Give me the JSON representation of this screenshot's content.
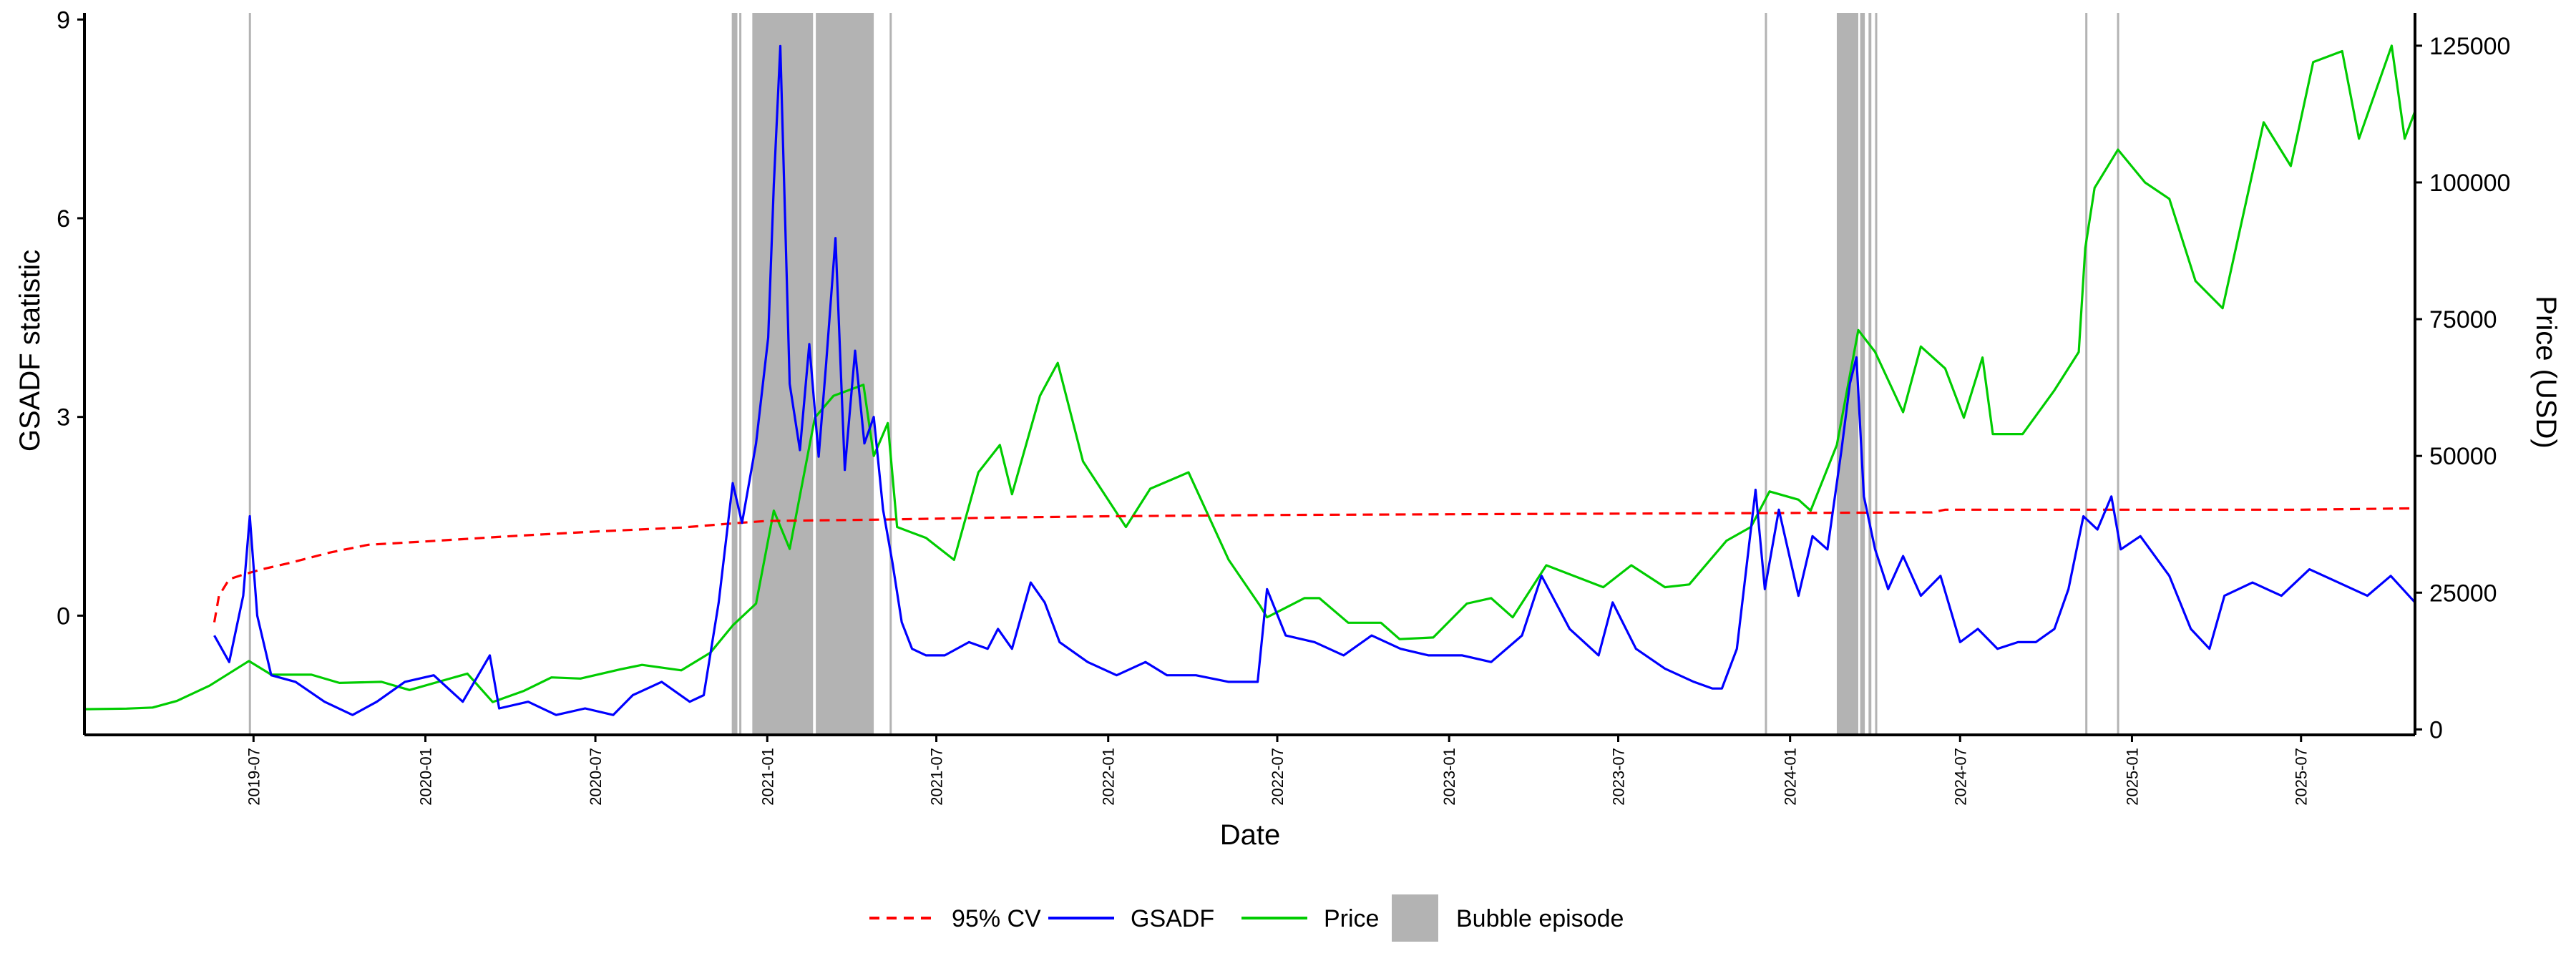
{
  "chart_data": {
    "type": "line",
    "title": "",
    "xlabel": "Date",
    "ylabel_left": "GSADF statistic",
    "ylabel_right": "Price (USD)",
    "xlim": [
      "2019-01-01",
      "2025-10-31"
    ],
    "ylim_left": [
      -1.8,
      9.1
    ],
    "ylim_right": [
      -1000,
      131000
    ],
    "grid": false,
    "legend_position": "bottom",
    "x_tick_labels": [
      "2019-07",
      "2020-01",
      "2020-07",
      "2021-01",
      "2021-07",
      "2022-01",
      "2022-07",
      "2023-01",
      "2023-07",
      "2024-01",
      "2024-07",
      "2025-01",
      "2025-07"
    ],
    "y_left_ticks": [
      0,
      3,
      6,
      9
    ],
    "y_right_ticks": [
      0,
      25000,
      50000,
      75000,
      100000,
      125000
    ],
    "legend": [
      {
        "label": "95% CV",
        "kind": "dashed",
        "color": "#ff0000"
      },
      {
        "label": "GSADF",
        "kind": "line",
        "color": "#0000ff"
      },
      {
        "label": "Price",
        "kind": "line",
        "color": "#00cc00"
      },
      {
        "label": "Bubble episode",
        "kind": "box",
        "color": "#b3b3b3"
      }
    ],
    "bubble_episodes": [
      [
        "2019-06-26",
        "2019-06-28"
      ],
      [
        "2020-11-24",
        "2020-11-30"
      ],
      [
        "2020-12-02",
        "2020-12-04"
      ],
      [
        "2020-12-16",
        "2021-02-19"
      ],
      [
        "2021-02-22",
        "2021-04-25"
      ],
      [
        "2021-05-12",
        "2021-05-13"
      ],
      [
        "2023-12-05",
        "2023-12-06"
      ],
      [
        "2024-02-20",
        "2024-03-14"
      ],
      [
        "2024-03-16",
        "2024-03-21"
      ],
      [
        "2024-03-25",
        "2024-03-28"
      ],
      [
        "2024-04-01",
        "2024-04-03"
      ],
      [
        "2024-11-12",
        "2024-11-13"
      ],
      [
        "2024-12-16",
        "2024-12-17"
      ]
    ],
    "series": [
      {
        "name": "95% CV",
        "axis": "left",
        "color": "#ff0000",
        "style": "dashed",
        "dates": [
          "2019-05-20",
          "2019-05-25",
          "2019-06-05",
          "2019-06-20",
          "2019-07-10",
          "2019-08-10",
          "2019-09-20",
          "2019-11-01",
          "2020-01-01",
          "2020-04-01",
          "2020-07-01",
          "2020-10-01",
          "2020-12-01",
          "2021-01-01",
          "2021-05-01",
          "2021-09-01",
          "2022-01-01",
          "2022-07-01",
          "2023-01-01",
          "2023-07-01",
          "2024-01-01",
          "2024-06-01",
          "2024-06-15",
          "2025-01-01",
          "2025-07-01",
          "2025-10-31"
        ],
        "values": [
          -0.1,
          0.3,
          0.55,
          0.62,
          0.7,
          0.8,
          0.95,
          1.07,
          1.12,
          1.2,
          1.27,
          1.33,
          1.4,
          1.43,
          1.45,
          1.48,
          1.5,
          1.52,
          1.53,
          1.54,
          1.55,
          1.56,
          1.6,
          1.6,
          1.6,
          1.62
        ]
      },
      {
        "name": "GSADF",
        "axis": "left",
        "color": "#0000ff",
        "style": "solid",
        "dates": [
          "2019-05-20",
          "2019-06-05",
          "2019-06-20",
          "2019-06-27",
          "2019-07-05",
          "2019-07-20",
          "2019-08-15",
          "2019-09-15",
          "2019-10-15",
          "2019-11-10",
          "2019-12-10",
          "2020-01-10",
          "2020-02-10",
          "2020-03-10",
          "2020-03-20",
          "2020-04-20",
          "2020-05-20",
          "2020-06-20",
          "2020-07-20",
          "2020-08-10",
          "2020-09-10",
          "2020-10-10",
          "2020-10-25",
          "2020-11-10",
          "2020-11-25",
          "2020-12-05",
          "2020-12-20",
          "2021-01-02",
          "2021-01-08",
          "2021-01-15",
          "2021-01-25",
          "2021-02-05",
          "2021-02-15",
          "2021-02-25",
          "2021-03-05",
          "2021-03-15",
          "2021-03-25",
          "2021-04-05",
          "2021-04-15",
          "2021-04-25",
          "2021-05-05",
          "2021-05-15",
          "2021-05-25",
          "2021-06-05",
          "2021-06-20",
          "2021-07-10",
          "2021-08-05",
          "2021-08-25",
          "2021-09-05",
          "2021-09-20",
          "2021-10-10",
          "2021-10-25",
          "2021-11-10",
          "2021-12-10",
          "2022-01-10",
          "2022-02-10",
          "2022-03-05",
          "2022-04-05",
          "2022-05-10",
          "2022-06-10",
          "2022-06-20",
          "2022-07-10",
          "2022-08-10",
          "2022-09-10",
          "2022-10-10",
          "2022-11-10",
          "2022-12-10",
          "2023-01-15",
          "2023-02-15",
          "2023-03-20",
          "2023-04-10",
          "2023-05-10",
          "2023-06-10",
          "2023-06-25",
          "2023-07-20",
          "2023-08-20",
          "2023-09-20",
          "2023-10-10",
          "2023-10-20",
          "2023-11-05",
          "2023-11-25",
          "2023-12-05",
          "2023-12-20",
          "2024-01-10",
          "2024-01-25",
          "2024-02-10",
          "2024-02-25",
          "2024-03-05",
          "2024-03-12",
          "2024-03-20",
          "2024-04-01",
          "2024-04-15",
          "2024-05-01",
          "2024-05-20",
          "2024-06-10",
          "2024-07-01",
          "2024-07-20",
          "2024-08-10",
          "2024-09-01",
          "2024-09-20",
          "2024-10-10",
          "2024-10-25",
          "2024-11-10",
          "2024-11-25",
          "2024-12-10",
          "2024-12-20",
          "2025-01-10",
          "2025-02-10",
          "2025-03-05",
          "2025-03-25",
          "2025-04-10",
          "2025-05-10",
          "2025-06-10",
          "2025-07-10",
          "2025-08-10",
          "2025-09-10",
          "2025-10-05",
          "2025-10-31"
        ],
        "values": [
          -0.3,
          -0.7,
          0.3,
          1.5,
          0.0,
          -0.9,
          -1.0,
          -1.3,
          -1.5,
          -1.3,
          -1.0,
          -0.9,
          -1.3,
          -0.6,
          -1.4,
          -1.3,
          -1.5,
          -1.4,
          -1.5,
          -1.2,
          -1.0,
          -1.3,
          -1.2,
          0.2,
          2.0,
          1.4,
          2.6,
          4.2,
          6.5,
          8.6,
          3.5,
          2.5,
          4.1,
          2.4,
          3.8,
          5.7,
          2.2,
          4.0,
          2.6,
          3.0,
          1.6,
          0.8,
          -0.1,
          -0.5,
          -0.6,
          -0.6,
          -0.4,
          -0.5,
          -0.2,
          -0.5,
          0.5,
          0.2,
          -0.4,
          -0.7,
          -0.9,
          -0.7,
          -0.9,
          -0.9,
          -1.0,
          -1.0,
          0.4,
          -0.3,
          -0.4,
          -0.6,
          -0.3,
          -0.5,
          -0.6,
          -0.6,
          -0.7,
          -0.3,
          0.6,
          -0.2,
          -0.6,
          0.2,
          -0.5,
          -0.8,
          -1.0,
          -1.1,
          -1.1,
          -0.5,
          1.9,
          0.4,
          1.6,
          0.3,
          1.2,
          1.0,
          2.5,
          3.5,
          3.9,
          1.8,
          1.0,
          0.4,
          0.9,
          0.3,
          0.6,
          -0.4,
          -0.2,
          -0.5,
          -0.4,
          -0.4,
          -0.2,
          0.4,
          1.5,
          1.3,
          1.8,
          1.0,
          1.2,
          0.6,
          -0.2,
          -0.5,
          0.3,
          0.5,
          0.3,
          0.7,
          0.5,
          0.3,
          0.6,
          0.2
        ]
      },
      {
        "name": "Price",
        "axis": "right",
        "color": "#00cc00",
        "style": "solid",
        "dates": [
          "2019-01-01",
          "2019-02-15",
          "2019-03-15",
          "2019-04-10",
          "2019-05-15",
          "2019-06-26",
          "2019-07-20",
          "2019-09-01",
          "2019-10-01",
          "2019-11-15",
          "2019-12-15",
          "2020-02-15",
          "2020-03-13",
          "2020-04-15",
          "2020-05-15",
          "2020-06-15",
          "2020-07-28",
          "2020-08-20",
          "2020-10-01",
          "2020-11-01",
          "2020-11-25",
          "2020-12-20",
          "2021-01-08",
          "2021-01-25",
          "2021-02-21",
          "2021-03-13",
          "2021-04-14",
          "2021-04-25",
          "2021-05-10",
          "2021-05-20",
          "2021-06-20",
          "2021-07-20",
          "2021-08-15",
          "2021-09-07",
          "2021-09-20",
          "2021-10-20",
          "2021-11-08",
          "2021-12-05",
          "2022-01-20",
          "2022-02-15",
          "2022-03-28",
          "2022-05-10",
          "2022-06-13",
          "2022-06-20",
          "2022-07-30",
          "2022-08-15",
          "2022-09-15",
          "2022-10-20",
          "2022-11-09",
          "2022-12-15",
          "2023-01-20",
          "2023-02-15",
          "2023-03-10",
          "2023-04-15",
          "2023-06-15",
          "2023-07-15",
          "2023-08-20",
          "2023-09-15",
          "2023-10-25",
          "2023-11-20",
          "2023-12-10",
          "2024-01-10",
          "2024-01-23",
          "2024-02-20",
          "2024-03-14",
          "2024-04-01",
          "2024-05-01",
          "2024-05-20",
          "2024-06-15",
          "2024-07-05",
          "2024-07-25",
          "2024-08-05",
          "2024-09-06",
          "2024-10-10",
          "2024-11-05",
          "2024-11-12",
          "2024-11-22",
          "2024-12-17",
          "2025-01-15",
          "2025-02-10",
          "2025-03-10",
          "2025-04-08",
          "2025-05-22",
          "2025-06-20",
          "2025-07-14",
          "2025-08-14",
          "2025-09-01",
          "2025-10-06",
          "2025-10-20",
          "2025-10-31"
        ],
        "values": [
          3700,
          3800,
          4000,
          5200,
          8000,
          12500,
          10000,
          10000,
          8500,
          8700,
          7200,
          10200,
          5000,
          7000,
          9500,
          9300,
          11000,
          11800,
          10800,
          14000,
          19000,
          23000,
          40000,
          33000,
          57000,
          61000,
          63000,
          50000,
          56000,
          37000,
          35000,
          31000,
          47000,
          52000,
          43000,
          61000,
          67000,
          49000,
          37000,
          44000,
          47000,
          31000,
          22500,
          20500,
          24000,
          24000,
          19500,
          19500,
          16500,
          16800,
          23000,
          24000,
          20500,
          30000,
          26000,
          30000,
          26000,
          26500,
          34500,
          37000,
          43500,
          42000,
          40000,
          52000,
          73000,
          69000,
          58000,
          70000,
          66000,
          57000,
          68000,
          54000,
          54000,
          62000,
          69000,
          88000,
          99000,
          106000,
          100000,
          97000,
          82000,
          77000,
          111000,
          103000,
          122000,
          124000,
          108000,
          125000,
          108000,
          113000
        ]
      }
    ]
  }
}
